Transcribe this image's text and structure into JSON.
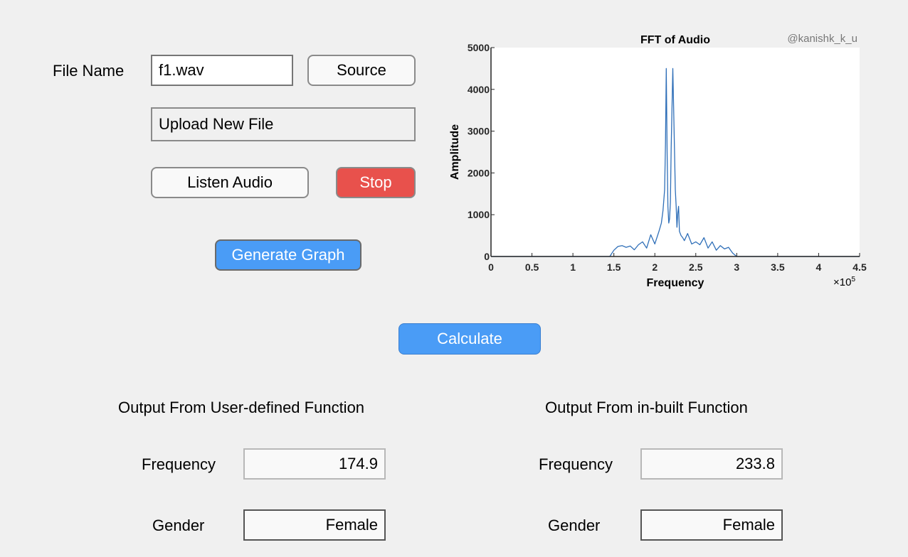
{
  "top": {
    "file_name_label": "File Name",
    "file_name_value": "f1.wav",
    "source_button": "Source",
    "upload_button": "Upload New File",
    "listen_button": "Listen Audio",
    "stop_button": "Stop",
    "generate_button": "Generate Graph"
  },
  "watermark": "@kanishk_k_u",
  "calculate_button": "Calculate",
  "user_defined": {
    "heading": "Output From User-defined Function",
    "frequency_label": "Frequency",
    "frequency_value": "174.9",
    "gender_label": "Gender",
    "gender_value": "Female"
  },
  "inbuilt": {
    "heading": "Output From in-built Function",
    "frequency_label": "Frequency",
    "frequency_value": "233.8",
    "gender_label": "Gender",
    "gender_value": "Female"
  },
  "colors": {
    "accent_blue": "#4a9cf6",
    "stop_red": "#e8514c",
    "series_blue": "#2f6fb8"
  },
  "chart_data": {
    "type": "line",
    "title": "FFT of Audio",
    "xlabel": "Frequency",
    "ylabel": "Amplitude",
    "x_exponent_label": "×10",
    "x_exponent_power": "5",
    "xlim": [
      0,
      4.5
    ],
    "ylim": [
      0,
      5000
    ],
    "xticks": [
      "0",
      "0.5",
      "1",
      "1.5",
      "2",
      "2.5",
      "3",
      "3.5",
      "4",
      "4.5"
    ],
    "yticks": [
      "0",
      "1000",
      "2000",
      "3000",
      "4000",
      "5000"
    ],
    "grid": false,
    "series": [
      {
        "x": [
          0,
          1.45,
          1.5,
          1.55,
          1.6,
          1.65,
          1.7,
          1.75,
          1.8,
          1.85,
          1.9,
          1.95,
          2.0,
          2.05,
          2.08,
          2.1,
          2.12,
          2.13,
          2.14,
          2.15,
          2.16,
          2.17,
          2.18,
          2.19,
          2.2,
          2.22,
          2.24,
          2.25,
          2.26,
          2.27,
          2.28,
          2.29,
          2.3,
          2.32,
          2.34,
          2.36,
          2.4,
          2.45,
          2.5,
          2.55,
          2.6,
          2.65,
          2.7,
          2.75,
          2.8,
          2.85,
          2.9,
          2.95,
          3.0,
          4.5
        ],
        "y": [
          0,
          0,
          150,
          240,
          260,
          220,
          250,
          160,
          280,
          350,
          200,
          520,
          300,
          600,
          800,
          1100,
          1600,
          2700,
          4500,
          2500,
          1200,
          800,
          900,
          1300,
          2600,
          4500,
          2600,
          1600,
          1200,
          700,
          1050,
          1200,
          600,
          500,
          450,
          380,
          550,
          300,
          350,
          280,
          450,
          200,
          350,
          150,
          260,
          180,
          220,
          80,
          0,
          0
        ]
      }
    ]
  }
}
